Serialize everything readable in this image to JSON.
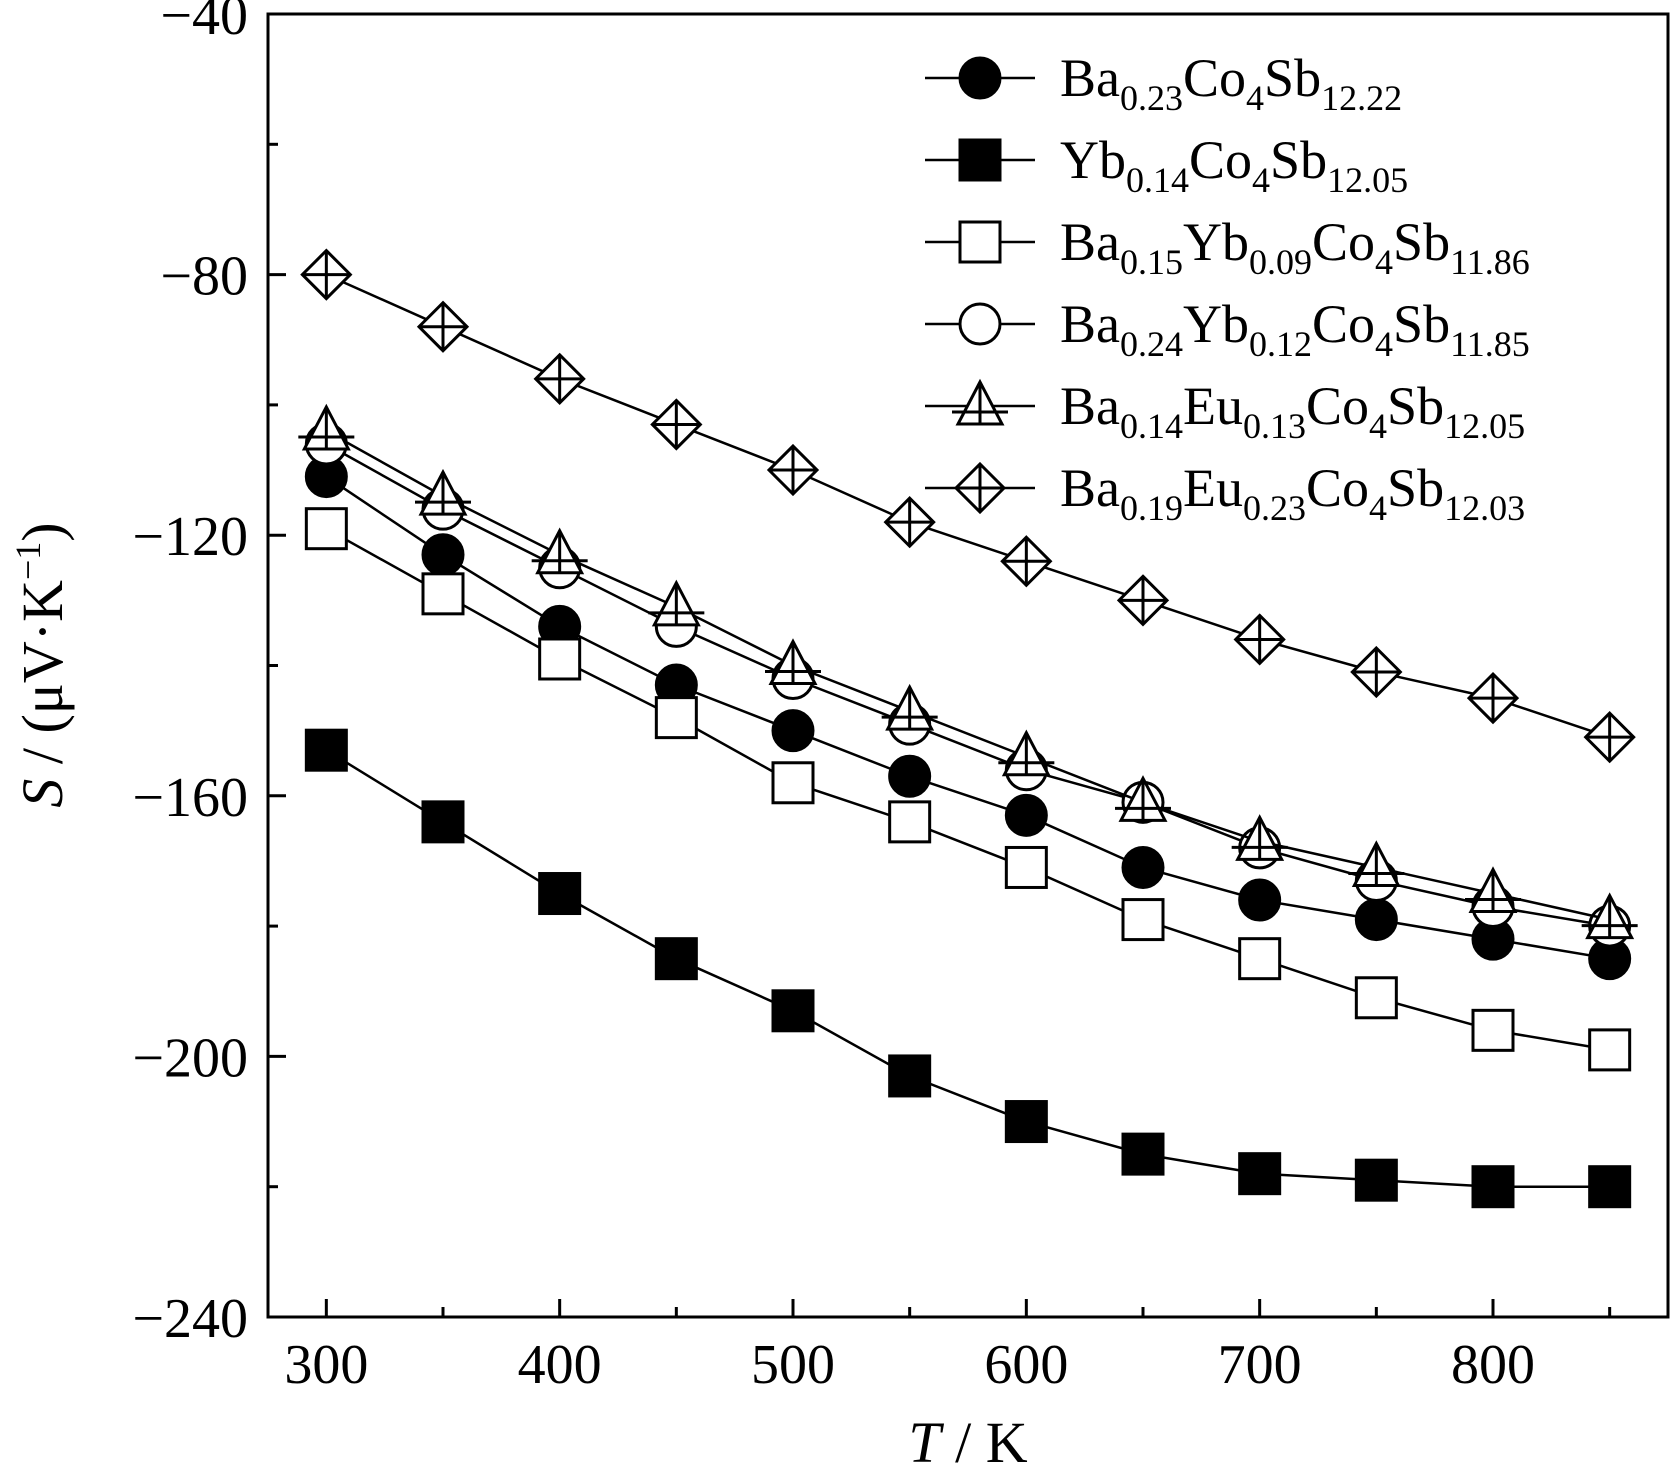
{
  "chart_data": {
    "type": "line",
    "title": "",
    "xlabel": {
      "italic": "T",
      "rest": " / K"
    },
    "ylabel": {
      "italic": "S",
      "rest": " / (μV·K",
      "sup": "−1",
      "close": ")"
    },
    "xlim": [
      275,
      875
    ],
    "ylim": [
      -240,
      -40
    ],
    "xticks": [
      300,
      400,
      500,
      600,
      700,
      800
    ],
    "xtick_labels": [
      "300",
      "400",
      "500",
      "600",
      "700",
      "800"
    ],
    "yticks": [
      -240,
      -200,
      -160,
      -120,
      -80,
      -40
    ],
    "ytick_labels": [
      "−240",
      "−200",
      "−160",
      "−120",
      "−80",
      "−40"
    ],
    "grid": false,
    "legend_position": "top-right",
    "x": [
      300,
      350,
      400,
      450,
      500,
      550,
      600,
      650,
      700,
      750,
      800,
      850
    ],
    "series": [
      {
        "name": "Ba0.23Co4Sb12.22",
        "label_parts": [
          [
            "Ba",
            "n"
          ],
          [
            "0.23",
            "s"
          ],
          [
            "Co",
            "n"
          ],
          [
            "4",
            "s"
          ],
          [
            "Sb",
            "n"
          ],
          [
            "12.22",
            "s"
          ]
        ],
        "marker": "filled-circle",
        "values": [
          -111,
          -123,
          -134,
          -143,
          -150,
          -157,
          -163,
          -171,
          -176,
          -179,
          -182,
          -185
        ]
      },
      {
        "name": "Yb0.14Co4Sb12.05",
        "label_parts": [
          [
            "Yb",
            "n"
          ],
          [
            "0.14",
            "s"
          ],
          [
            "Co",
            "n"
          ],
          [
            "4",
            "s"
          ],
          [
            "Sb",
            "n"
          ],
          [
            "12.05",
            "s"
          ]
        ],
        "marker": "filled-square",
        "values": [
          -153,
          -164,
          -175,
          -185,
          -193,
          -203,
          -210,
          -215,
          -218,
          -219,
          -220,
          -220
        ]
      },
      {
        "name": "Ba0.15Yb0.09Co4Sb11.86",
        "label_parts": [
          [
            "Ba",
            "n"
          ],
          [
            "0.15",
            "s"
          ],
          [
            "Yb",
            "n"
          ],
          [
            "0.09",
            "s"
          ],
          [
            "Co",
            "n"
          ],
          [
            "4",
            "s"
          ],
          [
            "Sb",
            "n"
          ],
          [
            "11.86",
            "s"
          ]
        ],
        "marker": "open-square",
        "values": [
          -119,
          -129,
          -139,
          -148,
          -158,
          -164,
          -171,
          -179,
          -185,
          -191,
          -196,
          -199
        ]
      },
      {
        "name": "Ba0.24Yb0.12Co4Sb11.85",
        "label_parts": [
          [
            "Ba",
            "n"
          ],
          [
            "0.24",
            "s"
          ],
          [
            "Yb",
            "n"
          ],
          [
            "0.12",
            "s"
          ],
          [
            "Co",
            "n"
          ],
          [
            "4",
            "s"
          ],
          [
            "Sb",
            "n"
          ],
          [
            "11.85",
            "s"
          ]
        ],
        "marker": "open-circle",
        "values": [
          -106,
          -116,
          -125,
          -134,
          -142,
          -149,
          -156,
          -161,
          -168,
          -173,
          -177,
          -180
        ]
      },
      {
        "name": "Ba0.14Eu0.13Co4Sb12.05",
        "label_parts": [
          [
            "Ba",
            "n"
          ],
          [
            "0.14",
            "s"
          ],
          [
            "Eu",
            "n"
          ],
          [
            "0.13",
            "s"
          ],
          [
            "Co",
            "n"
          ],
          [
            "4",
            "s"
          ],
          [
            "Sb",
            "n"
          ],
          [
            "12.05",
            "s"
          ]
        ],
        "marker": "triangle-cross",
        "values": [
          -104,
          -114,
          -123,
          -131,
          -140,
          -147,
          -154,
          -161,
          -167,
          -171,
          -175,
          -179
        ]
      },
      {
        "name": "Ba0.19Eu0.23Co4Sb12.03",
        "label_parts": [
          [
            "Ba",
            "n"
          ],
          [
            "0.19",
            "s"
          ],
          [
            "Eu",
            "n"
          ],
          [
            "0.23",
            "s"
          ],
          [
            "Co",
            "n"
          ],
          [
            "4",
            "s"
          ],
          [
            "Sb",
            "n"
          ],
          [
            "12.03",
            "s"
          ]
        ],
        "marker": "diamond-cross",
        "values": [
          -80,
          -88,
          -96,
          -103,
          -110,
          -118,
          -124,
          -130,
          -136,
          -141,
          -145,
          -151
        ]
      }
    ]
  }
}
